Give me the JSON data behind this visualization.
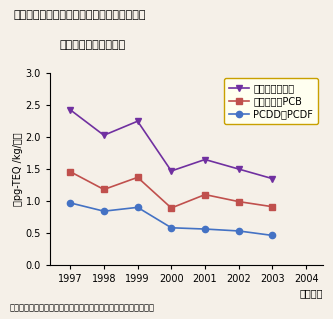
{
  "title_line1": "図５－３－７　食品からのダイオキシン類の",
  "title_line2": "一日摂取量の経年変化",
  "ylabel": "（pg-TEQ /kg/日）",
  "xlabel_suffix": "（年度）",
  "years": [
    1997,
    1998,
    1999,
    2000,
    2001,
    2002,
    2003
  ],
  "dioxin": [
    2.43,
    2.03,
    2.25,
    1.47,
    1.65,
    1.5,
    1.35
  ],
  "coplanar_pcb": [
    1.46,
    1.18,
    1.37,
    0.89,
    1.1,
    0.99,
    0.91
  ],
  "pcdd_pcdf": [
    0.97,
    0.84,
    0.9,
    0.58,
    0.56,
    0.53,
    0.46
  ],
  "dioxin_color": "#7030a0",
  "coplanar_color": "#c0504d",
  "pcdd_color": "#4472c4",
  "legend_labels": [
    "ダイオキシン類",
    "コプラナーPCB",
    "PCDD＋PCDF"
  ],
  "ylim": [
    0.0,
    3.0
  ],
  "yticks": [
    0.0,
    0.5,
    1.0,
    1.5,
    2.0,
    2.5,
    3.0
  ],
  "bg_color": "#f5f0e8",
  "source_text": "出典：厚生労働省『食品からのダイオキシン類一日摂取量調査』",
  "legend_bg": "#fffff0",
  "legend_border": "#c8a000"
}
